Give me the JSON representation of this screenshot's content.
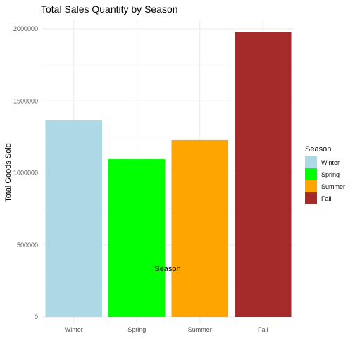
{
  "chart_data": {
    "type": "bar",
    "title": "Total Sales Quantity by Season",
    "xlabel": "Season",
    "ylabel": "Total Goods Sold",
    "categories": [
      "Winter",
      "Spring",
      "Summer",
      "Fall"
    ],
    "values": [
      1365000,
      1095000,
      1228000,
      1978000
    ],
    "colors": [
      "#add8e6",
      "#00ff00",
      "#ffa500",
      "#a52a2a"
    ],
    "ylim": [
      0,
      2000000
    ],
    "yticks": [
      "0",
      "500000",
      "1000000",
      "1500000",
      "2000000"
    ],
    "grid": true,
    "legend": {
      "title": "Season",
      "position": "right",
      "entries": [
        "Winter",
        "Spring",
        "Summer",
        "Fall"
      ]
    }
  }
}
